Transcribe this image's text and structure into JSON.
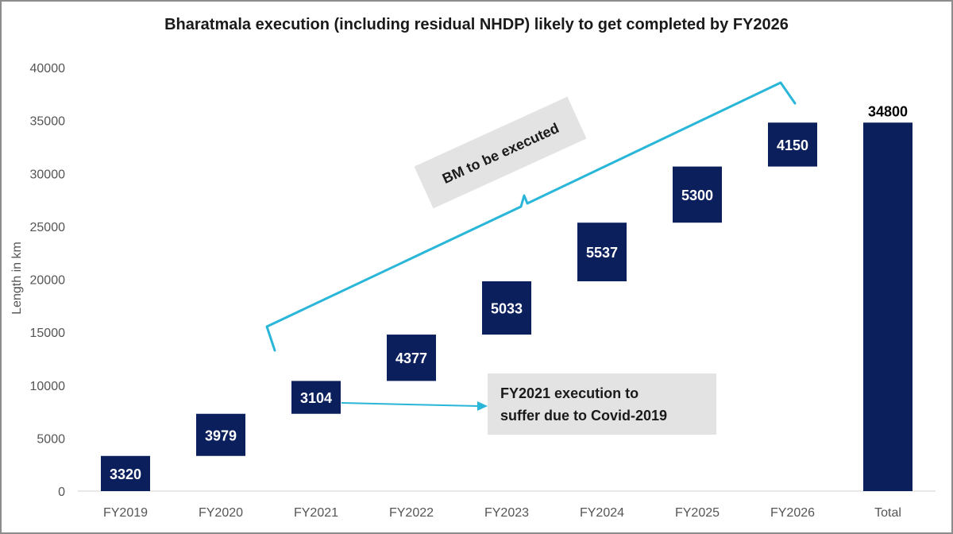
{
  "chart_data": {
    "type": "bar",
    "subtype": "waterfall",
    "title": "Bharatmala execution (including residual NHDP) likely to get completed by FY2026",
    "xlabel": "",
    "ylabel": "Length in km",
    "ylim": [
      0,
      40000
    ],
    "yticks": [
      0,
      5000,
      10000,
      15000,
      20000,
      25000,
      30000,
      35000,
      40000
    ],
    "categories": [
      "FY2019",
      "FY2020",
      "FY2021",
      "FY2022",
      "FY2023",
      "FY2024",
      "FY2025",
      "FY2026",
      "Total"
    ],
    "values": [
      3320,
      3979,
      3104,
      4377,
      5033,
      5537,
      5300,
      4150,
      34800
    ],
    "total_index": 8,
    "grid": false,
    "bar_color": "#0b1f5c",
    "label_color_increment": "#ffffff",
    "label_color_total": "#000000",
    "annotations": [
      {
        "text": "BM to be executed",
        "kind": "brace",
        "color": "#29b6d8",
        "spans": [
          "FY2021",
          "FY2026"
        ]
      },
      {
        "text_lines": [
          "FY2021 execution to",
          "suffer due to Covid-2019"
        ],
        "kind": "arrow",
        "color": "#29b6d8",
        "points_to": "FY2021"
      }
    ]
  }
}
